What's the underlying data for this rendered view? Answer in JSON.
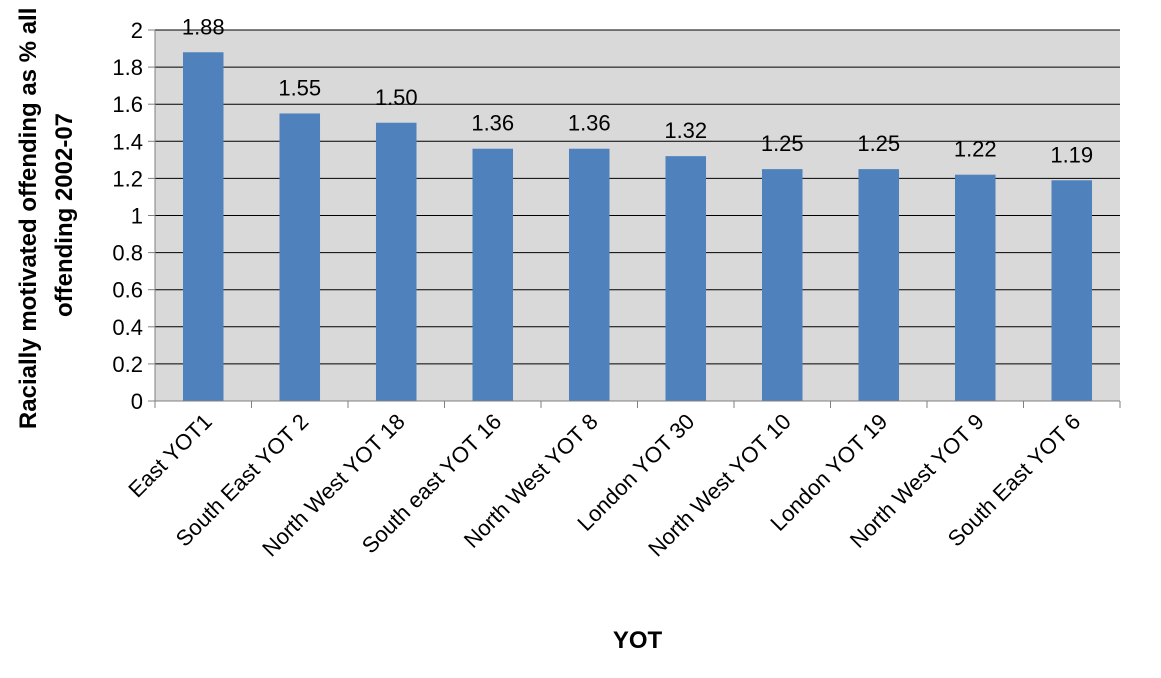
{
  "chart_data": {
    "type": "bar",
    "title": "",
    "xlabel": "YOT",
    "ylabel_lines": [
      "Racially motivated offending as % all",
      "offending  2002-07"
    ],
    "ylim": [
      0,
      2
    ],
    "ytick_step": 0.2,
    "yticks": [
      "0",
      "0.2",
      "0.4",
      "0.6",
      "0.8",
      "1",
      "1.2",
      "1.4",
      "1.6",
      "1.8",
      "2"
    ],
    "grid": true,
    "legend": "none",
    "categories": [
      "East YOT1",
      "South East YOT 2",
      "North West YOT 18",
      "South east YOT 16",
      "North West YOT 8",
      "London YOT 30",
      "North West YOT 10",
      "London YOT 19",
      "North West YOT 9",
      "South East YOT 6"
    ],
    "values": [
      1.88,
      1.55,
      1.5,
      1.36,
      1.36,
      1.32,
      1.25,
      1.25,
      1.22,
      1.19
    ],
    "data_labels": [
      "1.88",
      "1.55",
      "1.50",
      "1.36",
      "1.36",
      "1.32",
      "1.25",
      "1.25",
      "1.22",
      "1.19"
    ],
    "colors": {
      "bar": "#4F81BD",
      "plot_background": "#D9D9D9",
      "gridline": "#000000",
      "axis": "#808080"
    }
  }
}
